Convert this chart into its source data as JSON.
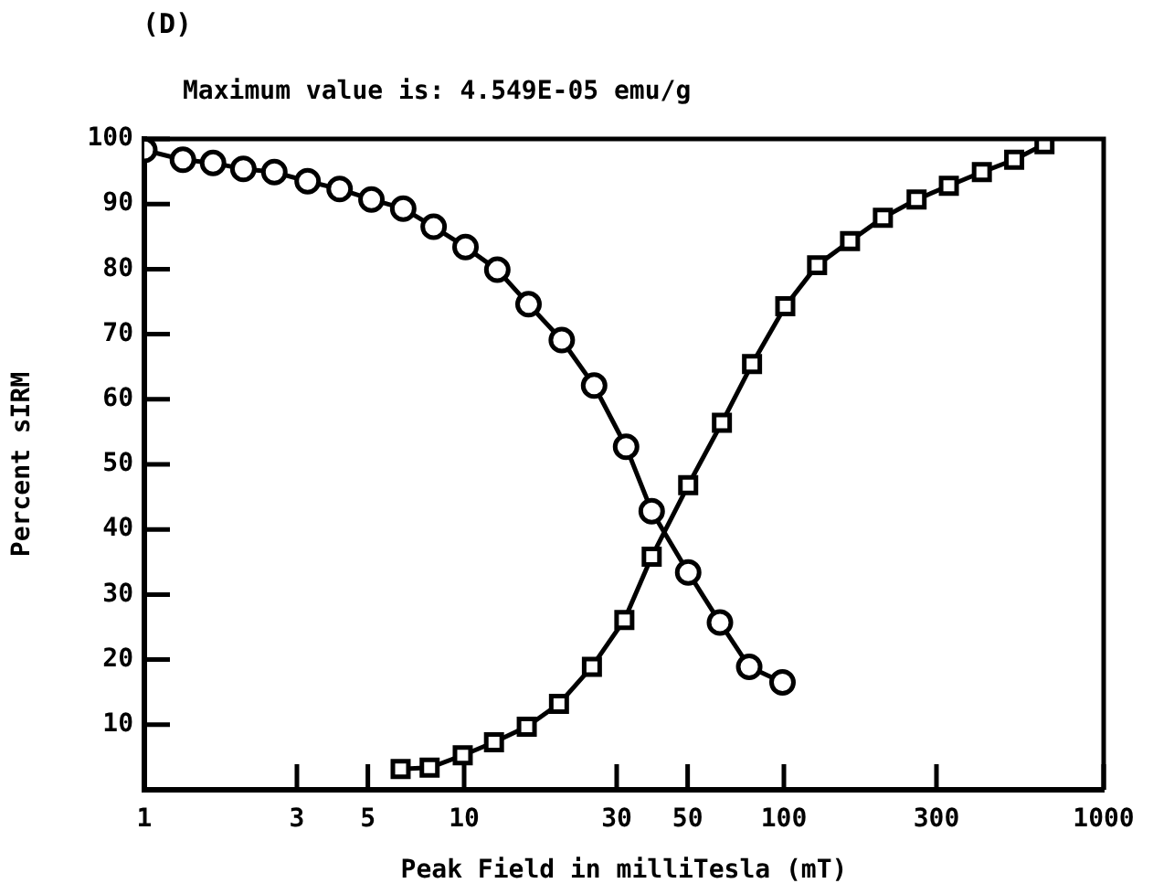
{
  "chart_data": {
    "type": "line",
    "title": "(D)",
    "subtitle": "Maximum value is: 4.549E-05 emu/g",
    "xlabel": "Peak Field in milliTesla (mT)",
    "ylabel": "Percent sIRM",
    "log": "x",
    "xlim": [
      1,
      1000
    ],
    "xticks": [
      1,
      3,
      5,
      10,
      30,
      50,
      100,
      300,
      1000
    ],
    "ylim": [
      0,
      100
    ],
    "yticks": [
      10,
      20,
      30,
      40,
      50,
      60,
      70,
      80,
      90,
      100
    ],
    "grid": false,
    "legend": false,
    "line_style": "solid",
    "series": [
      {
        "color": "#000000",
        "marker": "circle",
        "x": [
          1,
          1.32,
          1.64,
          2.04,
          2.55,
          3.24,
          4.08,
          5.13,
          6.45,
          8.03,
          10.1,
          12.7,
          15.9,
          20.2,
          25.5,
          32.1,
          38.6,
          50.2,
          63.1,
          77.9,
          99
        ],
        "values": [
          98.3,
          96.8,
          96.3,
          95.4,
          94.9,
          93.5,
          92.3,
          90.7,
          89.3,
          86.5,
          83.4,
          79.9,
          74.6,
          69.1,
          62.1,
          52.7,
          42.8,
          33.4,
          25.7,
          18.9,
          16.5
        ]
      },
      {
        "color": "#000000",
        "marker": "square",
        "x": [
          6.33,
          7.8,
          9.9,
          12.4,
          15.7,
          19.8,
          25.1,
          31.7,
          38.6,
          50.2,
          64,
          79.5,
          101,
          127,
          161,
          204,
          260,
          328,
          416,
          525,
          653
        ],
        "values": [
          3.2,
          3.4,
          5.3,
          7.3,
          9.7,
          13.2,
          18.9,
          26.1,
          35.8,
          46.8,
          56.4,
          65.4,
          74.3,
          80.6,
          84.3,
          87.9,
          90.7,
          92.8,
          94.9,
          96.8,
          99.2
        ]
      }
    ]
  }
}
